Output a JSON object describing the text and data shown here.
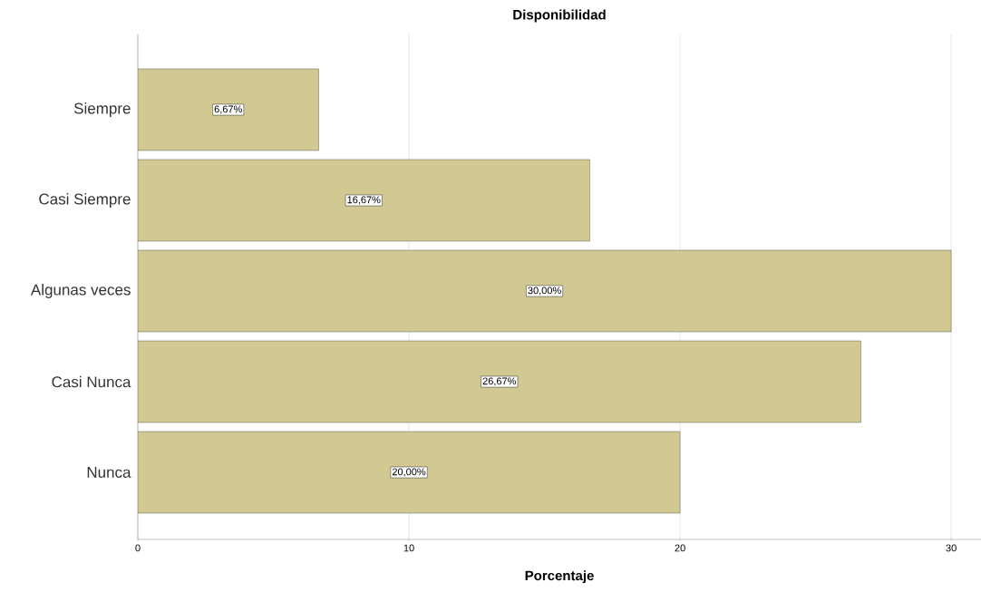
{
  "chart_data": {
    "type": "bar",
    "orientation": "horizontal",
    "title": "Disponibilidad",
    "xlabel": "Porcentaje",
    "categories": [
      "Siempre",
      "Casi Siempre",
      "Algunas veces",
      "Casi Nunca",
      "Nunca"
    ],
    "values": [
      6.67,
      16.67,
      30.0,
      26.67,
      20.0
    ],
    "value_labels": [
      "6,67%",
      "16,67%",
      "30,00%",
      "26,67%",
      "20,00%"
    ],
    "color": "#d1c991",
    "xlim": [
      0,
      31.1
    ],
    "xticks": [
      0,
      10,
      20,
      30
    ],
    "grid": "x"
  }
}
